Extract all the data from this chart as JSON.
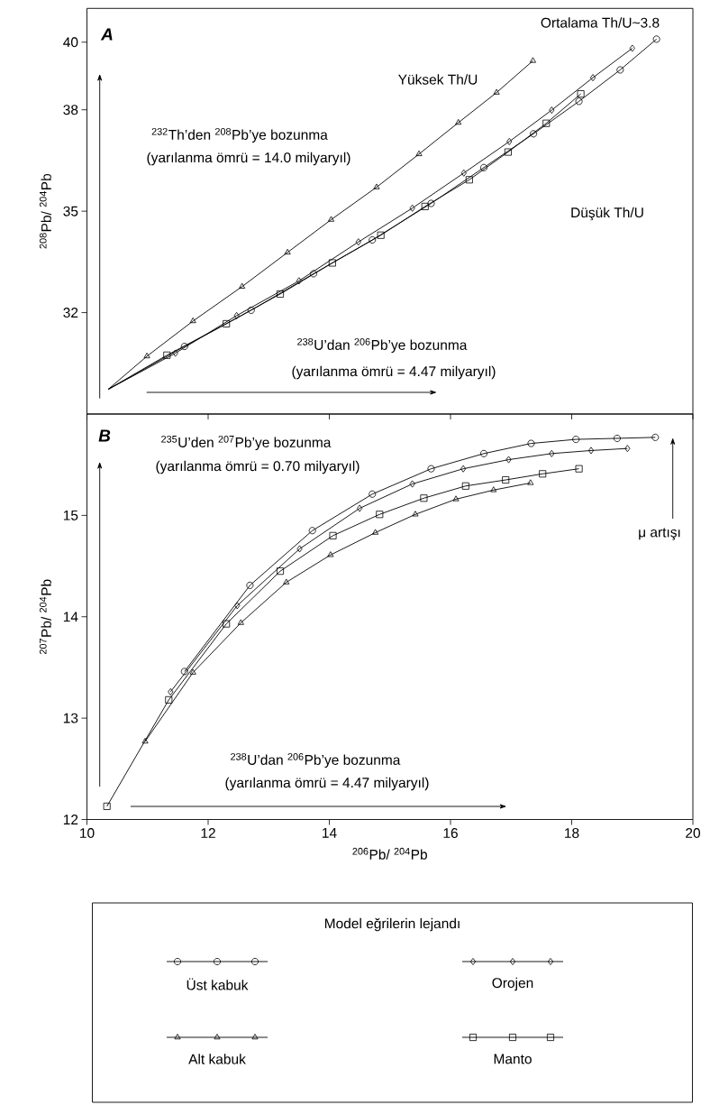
{
  "chart_data": [
    {
      "type": "line",
      "ylabel": "$^{208}$Pb/ $^{204}$Pb",
      "xlim": [
        10,
        20
      ],
      "ylim": [
        29,
        41
      ],
      "xticks": [
        10,
        12,
        14,
        16,
        18,
        20
      ],
      "yticks": [
        32,
        35,
        38,
        40
      ],
      "tick_labels": "y",
      "line_style": "solid",
      "annotations": [
        "A",
        "$^{232}$Th’den $^{208}$Pb’ye bozunma",
        "(yarılanma ömrü = 14.0 milyaryıl)",
        "Yüksek Th/U",
        "Ortalama Th/U~3.8",
        "Düşük Th/U",
        "$^{238}$U’dan $^{206}$Pb’ye bozunma",
        "(yarılanma ömrü = 4.47 milyaryıl)"
      ],
      "series": [
        {
          "color": "#000000",
          "marker": "circle",
          "x": [
            10.35,
            11.61,
            12.71,
            13.74,
            14.71,
            15.68,
            16.55,
            17.37,
            18.12,
            18.8,
            19.4
          ],
          "values": [
            29.73,
            31.0,
            32.07,
            33.15,
            34.15,
            35.23,
            36.29,
            37.29,
            38.25,
            39.18,
            40.09
          ]
        },
        {
          "color": "#000000",
          "marker": "diamond",
          "x": [
            10.35,
            11.46,
            12.47,
            13.5,
            14.48,
            15.37,
            16.22,
            16.97,
            17.67,
            18.35,
            19.0
          ],
          "values": [
            29.73,
            30.8,
            31.91,
            32.94,
            34.09,
            35.09,
            36.13,
            37.06,
            37.99,
            38.95,
            39.82
          ]
        },
        {
          "color": "#000000",
          "marker": "triangle",
          "x": [
            10.35,
            10.99,
            11.75,
            12.56,
            13.31,
            14.03,
            14.78,
            15.48,
            16.13,
            16.76,
            17.36
          ],
          "values": [
            29.73,
            30.71,
            31.75,
            32.77,
            33.78,
            34.75,
            35.71,
            36.69,
            37.62,
            38.51,
            39.45
          ]
        },
        {
          "color": "#000000",
          "marker": "square",
          "x": [
            10.35,
            11.32,
            12.3,
            13.19,
            14.05,
            14.85,
            15.58,
            16.31,
            16.95,
            17.58,
            18.15
          ],
          "values": [
            29.73,
            30.74,
            31.67,
            32.55,
            33.47,
            34.29,
            35.14,
            35.93,
            36.75,
            37.6,
            38.47
          ]
        }
      ]
    },
    {
      "type": "line",
      "xlabel": "$^{206}$Pb/ $^{204}$Pb",
      "ylabel": "$^{207}$Pb/ $^{204}$Pb",
      "xlim": [
        10,
        20
      ],
      "ylim": [
        12,
        16
      ],
      "xticks": [
        10,
        12,
        14,
        16,
        18,
        20
      ],
      "yticks": [
        12,
        13,
        14,
        15
      ],
      "line_style": "solid",
      "legend": "bottom",
      "legend_title": "Model eğrilerin lejandı",
      "annotations": [
        "B",
        "$^{235}$U’den $^{207}$Pb’ye bozunma",
        "(yarılanma ömrü = 0.70 milyaryıl)",
        "μ artışı",
        "$^{238}$U’dan $^{206}$Pb’ye bozunma",
        "(yarılanma ömrü = 4.47 milyaryıl)"
      ],
      "series": [
        {
          "name": "Üst kabuk",
          "color": "#000000",
          "marker": "circle",
          "x": [
            11.61,
            12.69,
            13.72,
            14.71,
            15.68,
            16.55,
            17.33,
            18.07,
            18.75,
            19.38
          ],
          "values": [
            13.46,
            14.31,
            14.85,
            15.21,
            15.46,
            15.61,
            15.71,
            15.75,
            15.76,
            15.77
          ]
        },
        {
          "name": "Orojen",
          "color": "#000000",
          "marker": "diamond",
          "x": [
            11.38,
            12.48,
            13.51,
            14.5,
            15.37,
            16.21,
            16.96,
            17.67,
            18.32,
            18.92
          ],
          "values": [
            13.26,
            14.11,
            14.67,
            15.07,
            15.31,
            15.46,
            15.55,
            15.61,
            15.64,
            15.66
          ]
        },
        {
          "name": "Alt kabuk",
          "color": "#000000",
          "marker": "triangle",
          "x": [
            10.96,
            11.75,
            12.54,
            13.29,
            14.02,
            14.76,
            15.42,
            16.09,
            16.71,
            17.32
          ],
          "values": [
            12.77,
            13.45,
            13.94,
            14.34,
            14.61,
            14.83,
            15.01,
            15.16,
            15.25,
            15.32
          ]
        },
        {
          "name": "Manto",
          "color": "#000000",
          "marker": "square",
          "x": [
            10.33,
            11.35,
            12.3,
            13.19,
            14.06,
            14.83,
            15.56,
            16.25,
            16.91,
            17.52,
            18.12
          ],
          "values": [
            12.13,
            13.18,
            13.93,
            14.45,
            14.8,
            15.01,
            15.17,
            15.29,
            15.35,
            15.41,
            15.46
          ]
        }
      ]
    }
  ]
}
